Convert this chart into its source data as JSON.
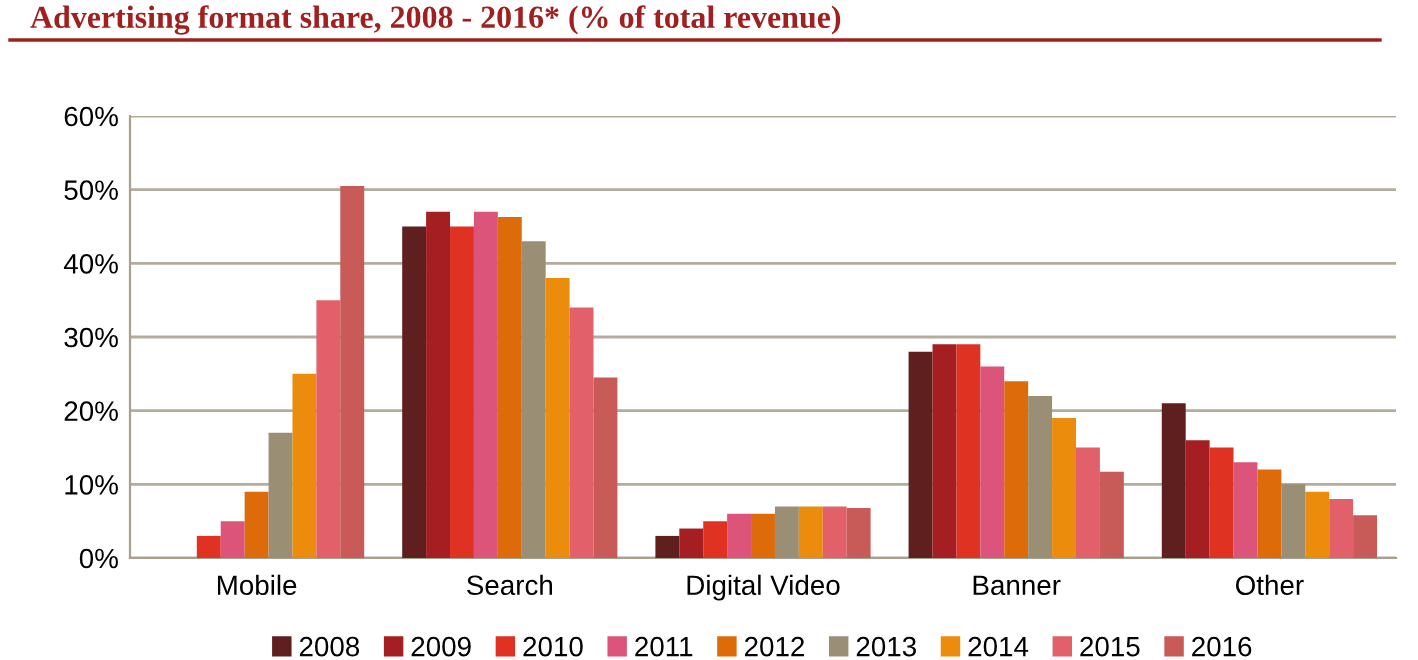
{
  "chart_data": {
    "type": "bar",
    "title": "Advertising format share, 2008 - 2016* (% of total revenue)",
    "categories": [
      "Mobile",
      "Search",
      "Digital Video",
      "Banner",
      "Other"
    ],
    "series": [
      {
        "name": "2008",
        "color": "#5f1f1f",
        "values": [
          0,
          45,
          3,
          28,
          21
        ]
      },
      {
        "name": "2009",
        "color": "#a51f22",
        "values": [
          0,
          47,
          4,
          29,
          16
        ]
      },
      {
        "name": "2010",
        "color": "#e03223",
        "values": [
          3,
          45,
          5,
          29,
          15
        ]
      },
      {
        "name": "2011",
        "color": "#dc5479",
        "values": [
          5,
          47,
          6,
          26,
          13
        ]
      },
      {
        "name": "2012",
        "color": "#de6b0a",
        "values": [
          9,
          46.3,
          6,
          24,
          12
        ]
      },
      {
        "name": "2013",
        "color": "#9a8f74",
        "values": [
          17,
          43,
          7,
          22,
          10
        ]
      },
      {
        "name": "2014",
        "color": "#eb8c0c",
        "values": [
          25,
          38,
          7,
          19,
          9
        ]
      },
      {
        "name": "2015",
        "color": "#e2606a",
        "values": [
          35,
          34,
          7,
          15,
          8
        ]
      },
      {
        "name": "2016",
        "color": "#c85a58",
        "values": [
          50.5,
          24.5,
          6.8,
          11.7,
          5.8
        ]
      }
    ],
    "ylim": [
      0,
      60
    ],
    "yticks": [
      {
        "value": 0,
        "label": "0%"
      },
      {
        "value": 10,
        "label": "10%"
      },
      {
        "value": 20,
        "label": "20%"
      },
      {
        "value": 30,
        "label": "30%"
      },
      {
        "value": 40,
        "label": "40%"
      },
      {
        "value": 50,
        "label": "50%"
      },
      {
        "value": 60,
        "label": "60%"
      }
    ],
    "grid": "y",
    "legend": "bottom"
  }
}
